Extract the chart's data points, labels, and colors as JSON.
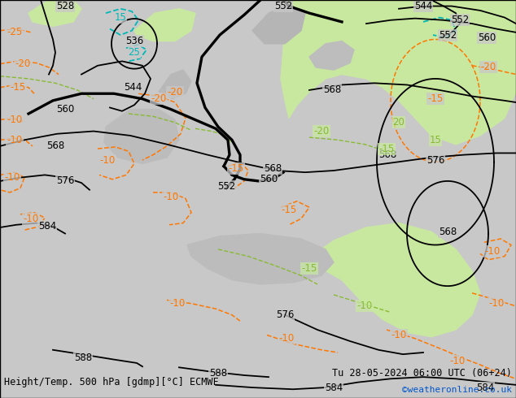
{
  "title_left": "Height/Temp. 500 hPa [gdmp][°C] ECMWF",
  "title_right": "Tu 28-05-2024 06:00 UTC (06+24)",
  "credit": "©weatheronline.co.uk",
  "bg_color": "#ffffff",
  "land_color": "#d0d0d0",
  "sea_color": "#c8c8c8",
  "green_color": "#c8e8a0",
  "cyan_color": "#00b8b8",
  "orange_color": "#ff7700",
  "black_color": "#000000",
  "lgreen_color": "#88bb33",
  "label_fontsize": 8.5,
  "title_fontsize": 8.5,
  "credit_fontsize": 8,
  "figsize": [
    6.34,
    4.9
  ],
  "dpi": 100
}
